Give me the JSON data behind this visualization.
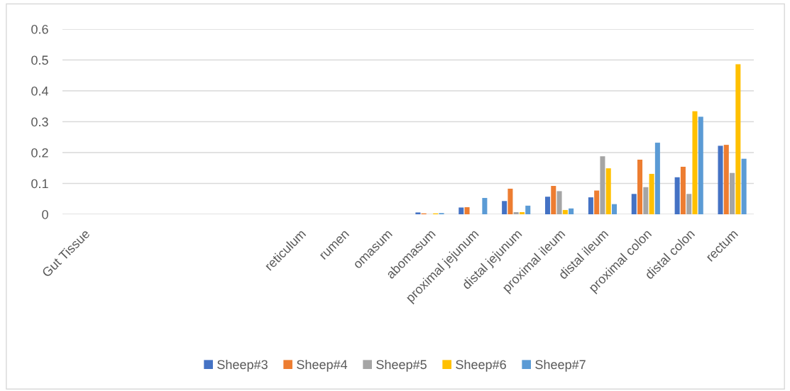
{
  "chart_data": {
    "type": "bar",
    "categories": [
      "Gut Tissue",
      null,
      null,
      null,
      null,
      "reticulum",
      "rumen",
      "omasum",
      "abomasum",
      "proximal jejunum",
      "distal jejunum",
      "proximal ileum",
      "distal ileum",
      "proximal colon",
      "distal colon",
      "rectum"
    ],
    "series": [
      {
        "name": "Sheep#3",
        "color": "#4472c4",
        "values": [
          null,
          null,
          null,
          null,
          null,
          0,
          0,
          0,
          0.006,
          0.022,
          0.043,
          0.057,
          0.055,
          0.066,
          0.12,
          0.222
        ]
      },
      {
        "name": "Sheep#4",
        "color": "#ed7d31",
        "values": [
          null,
          null,
          null,
          null,
          null,
          0,
          0,
          0,
          0.003,
          0.023,
          0.083,
          0.092,
          0.077,
          0.177,
          0.154,
          0.225
        ]
      },
      {
        "name": "Sheep#5",
        "color": "#a5a5a5",
        "values": [
          null,
          null,
          null,
          null,
          null,
          0,
          0,
          0,
          null,
          0,
          0.007,
          0.075,
          0.188,
          0.088,
          0.066,
          0.134
        ]
      },
      {
        "name": "Sheep#6",
        "color": "#ffc000",
        "values": [
          null,
          null,
          null,
          null,
          null,
          0,
          0,
          0,
          0.003,
          0,
          0.007,
          0.014,
          0.149,
          0.131,
          0.334,
          0.486
        ]
      },
      {
        "name": "Sheep#7",
        "color": "#5b9bd5",
        "values": [
          null,
          null,
          null,
          null,
          null,
          0,
          0,
          0,
          0.004,
          0.053,
          0.028,
          0.019,
          0.033,
          0.232,
          0.316,
          0.18
        ]
      }
    ],
    "ylim": [
      0,
      0.6
    ],
    "yticks": [
      0,
      0.1,
      0.2,
      0.3,
      0.4,
      0.5,
      0.6
    ],
    "grid": "y",
    "legend": "bottom"
  }
}
